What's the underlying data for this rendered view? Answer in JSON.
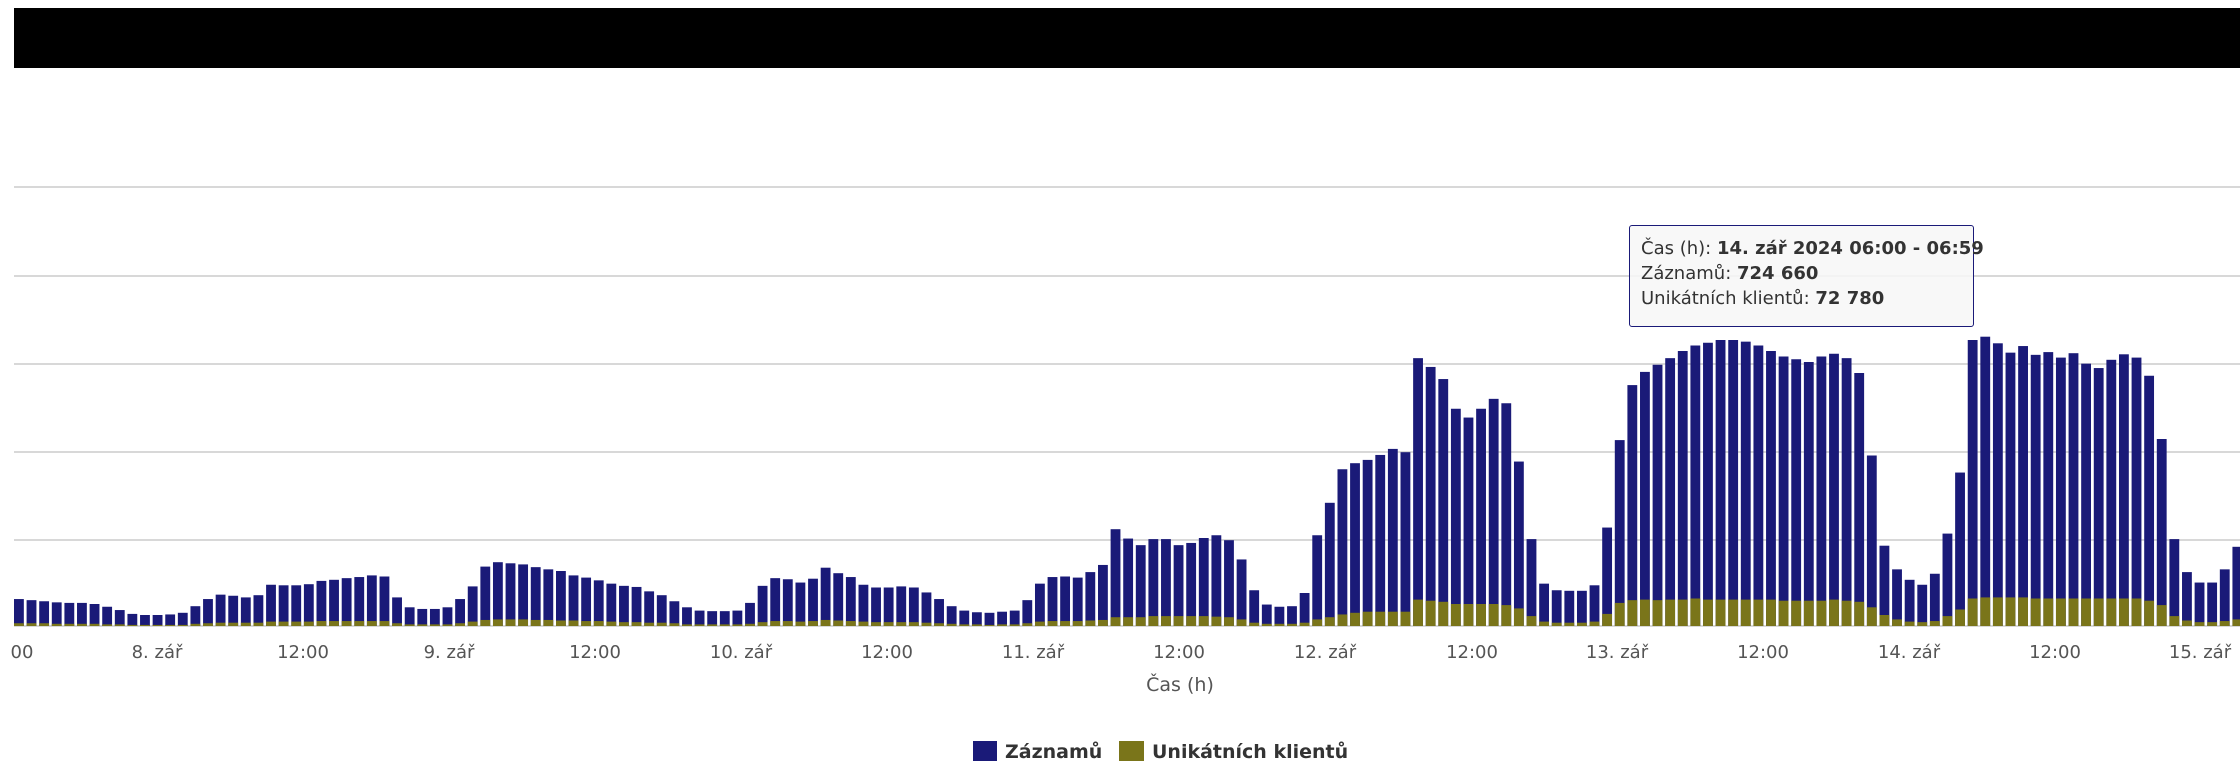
{
  "colors": {
    "records": "#1a1a78",
    "clients": "#7a751a",
    "grid": "#cccccc",
    "text": "#555555"
  },
  "chart_data": {
    "type": "bar",
    "stacked_overlay": true,
    "xlabel": "Čas (h)",
    "x_tick_labels": [
      "00",
      "8. zář",
      "12:00",
      "9. zář",
      "12:00",
      "10. zář",
      "12:00",
      "11. zář",
      "12:00",
      "12. zář",
      "12:00",
      "13. zář",
      "12:00",
      "14. zář",
      "12:00",
      "15. zář"
    ],
    "grid": true,
    "legend_position": "bottom-center",
    "series": [
      {
        "name": "Záznamů",
        "color": "#1a1a78",
        "values": [
          49000,
          47000,
          45000,
          43000,
          42000,
          42000,
          40000,
          35000,
          29000,
          22000,
          20000,
          20000,
          21000,
          24000,
          36000,
          49000,
          57000,
          55000,
          52000,
          56000,
          75000,
          74000,
          74000,
          76000,
          82000,
          84000,
          87000,
          89000,
          92000,
          90000,
          52000,
          34000,
          31000,
          31000,
          34000,
          49000,
          72000,
          108000,
          116000,
          114000,
          112000,
          107000,
          103000,
          100000,
          92000,
          88000,
          83000,
          77000,
          73000,
          71000,
          63000,
          56000,
          45000,
          34000,
          28000,
          27000,
          27000,
          28000,
          42000,
          73000,
          87000,
          85000,
          79000,
          86000,
          106000,
          96000,
          89000,
          75000,
          70000,
          70000,
          72000,
          70000,
          61000,
          49000,
          36000,
          28000,
          25000,
          24000,
          26000,
          28000,
          47000,
          77000,
          89000,
          90000,
          88000,
          98000,
          111000,
          176000,
          159000,
          147000,
          158000,
          158000,
          147000,
          151000,
          160000,
          165000,
          156000,
          121000,
          65000,
          39000,
          35000,
          36000,
          60000,
          165000,
          224000,
          285000,
          296000,
          302000,
          311000,
          322000,
          316000,
          487000,
          471000,
          449000,
          395000,
          379000,
          395000,
          413000,
          405000,
          299000,
          158000,
          77000,
          65000,
          64000,
          64000,
          74000,
          179000,
          338000,
          438000,
          462000,
          475000,
          487000,
          500000,
          510000,
          515000,
          520000,
          520000,
          517000,
          510000,
          500000,
          490000,
          485000,
          480000,
          490000,
          495000,
          487000,
          460000,
          310000,
          146000,
          103000,
          84000,
          75000,
          95000,
          168000,
          279000,
          520000,
          526000,
          514000,
          497000,
          509000,
          493000,
          498000,
          488000,
          496000,
          477000,
          469000,
          484000,
          494000,
          488000,
          455000,
          340000,
          158000,
          98000,
          79000,
          79000,
          103000,
          144000
        ],
        "highlighted": {
          "label": "14. zář 2024 06:00 - 06:59",
          "value": 724660
        }
      },
      {
        "name": "Unikátních klientů",
        "color": "#7a751a",
        "values": [
          5000,
          5000,
          5000,
          4000,
          4000,
          4000,
          4000,
          3000,
          3000,
          2000,
          2000,
          2000,
          2000,
          2000,
          4000,
          5000,
          6000,
          6000,
          6000,
          6000,
          8000,
          8000,
          8000,
          8000,
          9000,
          9000,
          9000,
          9000,
          9000,
          9000,
          5000,
          3000,
          3000,
          3000,
          3000,
          5000,
          8000,
          11000,
          12000,
          12000,
          12000,
          11000,
          11000,
          10000,
          10000,
          9000,
          9000,
          8000,
          7000,
          7000,
          6000,
          6000,
          5000,
          3000,
          3000,
          3000,
          3000,
          3000,
          4000,
          7000,
          9000,
          9000,
          8000,
          9000,
          11000,
          10000,
          9000,
          8000,
          7000,
          7000,
          7000,
          7000,
          6000,
          5000,
          4000,
          3000,
          3000,
          2000,
          3000,
          3000,
          5000,
          8000,
          9000,
          9000,
          9000,
          10000,
          11000,
          16000,
          16000,
          16000,
          18000,
          18000,
          18000,
          18000,
          18000,
          17000,
          16000,
          12000,
          6000,
          4000,
          4000,
          4000,
          6000,
          12000,
          16000,
          21000,
          24000,
          26000,
          26000,
          26000,
          26000,
          48000,
          46000,
          44000,
          40000,
          40000,
          40000,
          40000,
          38000,
          32000,
          18000,
          8000,
          6000,
          6000,
          6000,
          8000,
          22000,
          42000,
          47000,
          48000,
          47000,
          48000,
          48000,
          50000,
          48000,
          48000,
          48000,
          48000,
          48000,
          48000,
          46000,
          46000,
          46000,
          46000,
          48000,
          46000,
          44000,
          34000,
          20000,
          12000,
          8000,
          7000,
          9000,
          18000,
          30000,
          50000,
          52000,
          52000,
          52000,
          52000,
          50000,
          50000,
          50000,
          50000,
          50000,
          50000,
          50000,
          50000,
          50000,
          46000,
          38000,
          18000,
          10000,
          7000,
          7000,
          9000,
          12000
        ]
      }
    ]
  },
  "legend": {
    "records_label": "Záznamů",
    "clients_label": "Unikátních klientů"
  },
  "tooltip": {
    "time_label": "Čas (h): ",
    "time_value": "14. zář 2024 06:00 - 06:59",
    "records_label": "Záznamů: ",
    "records_value": "724 660",
    "clients_label": "Unikátních klientů: ",
    "clients_value": "72 780"
  }
}
